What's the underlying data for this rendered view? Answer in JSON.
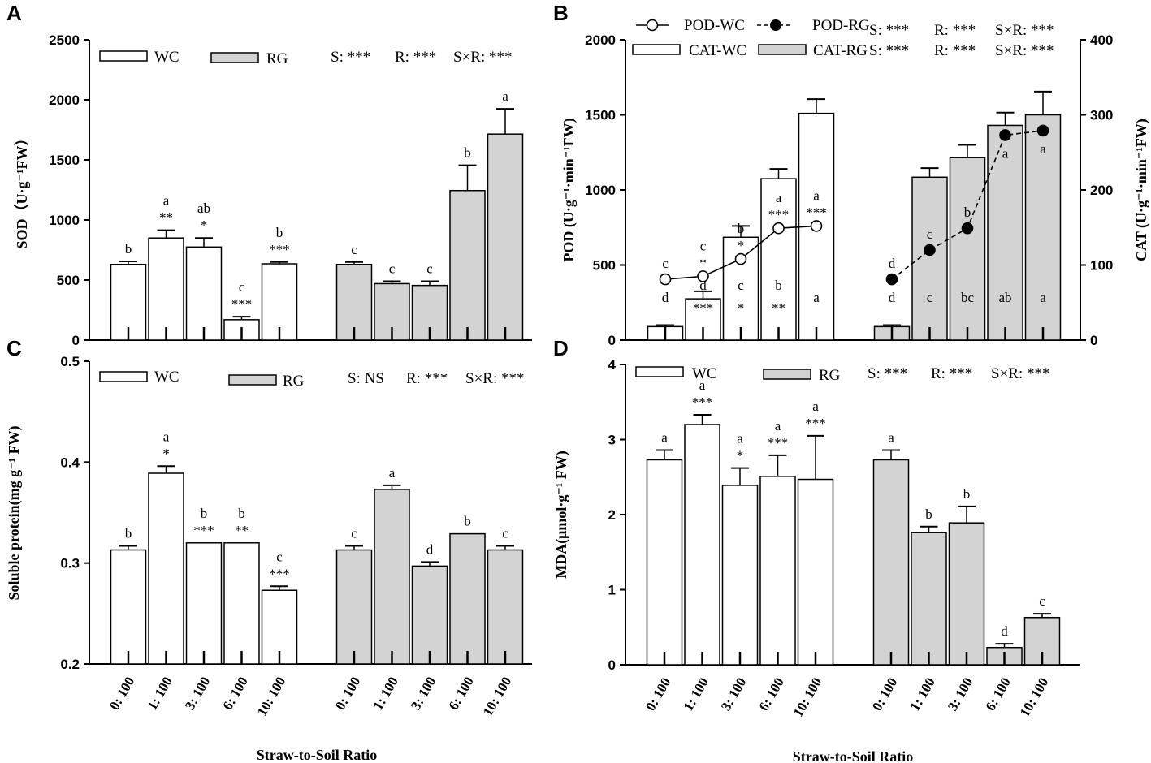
{
  "figure": {
    "colors": {
      "wc": "#ffffff",
      "rg": "#d3d3d3",
      "stroke": "#000000"
    },
    "categories": [
      "0: 100",
      "1: 100",
      "3: 100",
      "6: 100",
      "10: 100"
    ],
    "x_axis_title": "Straw-to-Soil Ratio"
  },
  "chart_data": [
    {
      "id": "A",
      "type": "bar",
      "ylabel": "SOD（U·g⁻¹FW）",
      "ylim": [
        0,
        2500
      ],
      "yticks": [
        0,
        500,
        1000,
        1500,
        2000,
        2500
      ],
      "legend": {
        "wc": "WC",
        "rg": "RG"
      },
      "stats": {
        "s": "S: ***",
        "r": "R: ***",
        "sr": "S×R: ***"
      },
      "series": [
        {
          "name": "WC",
          "values": [
            630,
            850,
            775,
            170,
            635
          ],
          "errors": [
            25,
            65,
            75,
            25,
            15
          ],
          "letters": [
            "b",
            "a",
            "ab",
            "c",
            "b"
          ],
          "stars": [
            "",
            "**",
            "*",
            "***",
            "***"
          ]
        },
        {
          "name": "RG",
          "values": [
            630,
            470,
            455,
            1245,
            1715
          ],
          "errors": [
            20,
            20,
            35,
            210,
            210
          ],
          "letters": [
            "c",
            "c",
            "c",
            "b",
            "a"
          ],
          "stars": [
            "",
            "",
            "",
            "",
            ""
          ]
        }
      ]
    },
    {
      "id": "B",
      "type": "bar+line",
      "ylabel": "POD (U·g⁻¹·min⁻¹FW)",
      "y2label": "CAT (U·g⁻¹·min⁻¹FW)",
      "ylim": [
        0,
        2000
      ],
      "yticks": [
        0,
        500,
        1000,
        1500,
        2000
      ],
      "y2lim": [
        0,
        400
      ],
      "y2ticks": [
        0,
        100,
        200,
        300,
        400
      ],
      "legend": {
        "pod_wc": "POD-WC",
        "pod_rg": "POD-RG",
        "cat_wc": "CAT-WC",
        "cat_rg": "CAT-RG"
      },
      "stats_pod": {
        "s": "S: ***",
        "r": "R: ***",
        "sr": "S×R: ***"
      },
      "stats_cat": {
        "s": "S: ***",
        "r": "R: ***",
        "sr": "S×R: ***"
      },
      "cat_series": [
        {
          "name": "CAT-WC",
          "values": [
            18,
            55,
            137,
            215,
            302
          ],
          "errors": [
            2,
            10,
            15,
            13,
            19
          ],
          "letters": [
            "d",
            "d",
            "c",
            "b",
            "a"
          ],
          "stars": [
            "",
            "***",
            "*",
            "**",
            ""
          ]
        },
        {
          "name": "CAT-RG",
          "values": [
            18,
            217,
            243,
            286,
            300
          ],
          "errors": [
            2,
            12,
            17,
            17,
            31
          ],
          "letters": [
            "d",
            "c",
            "bc",
            "ab",
            "a"
          ],
          "stars": [
            "",
            "",
            "",
            "",
            ""
          ]
        }
      ],
      "pod_series": [
        {
          "name": "POD-WC",
          "values": [
            405,
            425,
            540,
            745,
            760
          ],
          "letters": [
            "c",
            "c",
            "b",
            "a",
            "a"
          ],
          "stars": [
            "",
            "*",
            "*",
            "***",
            "***"
          ]
        },
        {
          "name": "POD-RG",
          "values": [
            405,
            600,
            745,
            1365,
            1395
          ],
          "letters": [
            "d",
            "c",
            "b",
            "a",
            "a"
          ],
          "stars": [
            "",
            "",
            "",
            "",
            ""
          ]
        }
      ]
    },
    {
      "id": "C",
      "type": "bar",
      "ylabel": "Soluble protein(mg g⁻¹ FW)",
      "ylim": [
        0.2,
        0.5
      ],
      "yticks": [
        "0.2",
        "0.3",
        "0.4",
        "0.5"
      ],
      "legend": {
        "wc": "WC",
        "rg": "RG"
      },
      "stats": {
        "s": "S: NS",
        "r": "R: ***",
        "sr": "S×R: ***"
      },
      "series": [
        {
          "name": "WC",
          "values": [
            0.313,
            0.389,
            0.32,
            0.32,
            0.273
          ],
          "errors": [
            0.004,
            0.007,
            0,
            0,
            0.004
          ],
          "letters": [
            "b",
            "a",
            "b",
            "b",
            "c"
          ],
          "stars": [
            "",
            "*",
            "***",
            "**",
            "***"
          ]
        },
        {
          "name": "RG",
          "values": [
            0.313,
            0.373,
            0.297,
            0.329,
            0.313
          ],
          "errors": [
            0.004,
            0.004,
            0.004,
            0,
            0.004
          ],
          "letters": [
            "c",
            "a",
            "d",
            "b",
            "c"
          ],
          "stars": [
            "",
            "",
            "",
            "",
            ""
          ]
        }
      ]
    },
    {
      "id": "D",
      "type": "bar",
      "ylabel": "MDA(μmol·g⁻¹ FW)",
      "ylim": [
        0,
        4
      ],
      "yticks": [
        0,
        1,
        2,
        3,
        4
      ],
      "legend": {
        "wc": "WC",
        "rg": "RG"
      },
      "stats": {
        "s": "S: ***",
        "r": "R: ***",
        "sr": "S×R: ***"
      },
      "series": [
        {
          "name": "WC",
          "values": [
            2.73,
            3.2,
            2.39,
            2.51,
            2.47
          ],
          "errors": [
            0.13,
            0.13,
            0.23,
            0.28,
            0.58
          ],
          "letters": [
            "a",
            "a",
            "a",
            "a",
            "a"
          ],
          "stars": [
            "",
            "***",
            "*",
            "***",
            "***"
          ]
        },
        {
          "name": "RG",
          "values": [
            2.73,
            1.76,
            1.89,
            0.23,
            0.63
          ],
          "errors": [
            0.13,
            0.08,
            0.22,
            0.05,
            0.05
          ],
          "letters": [
            "a",
            "b",
            "b",
            "d",
            "c"
          ],
          "stars": [
            "",
            "",
            "",
            "",
            ""
          ]
        }
      ]
    }
  ]
}
